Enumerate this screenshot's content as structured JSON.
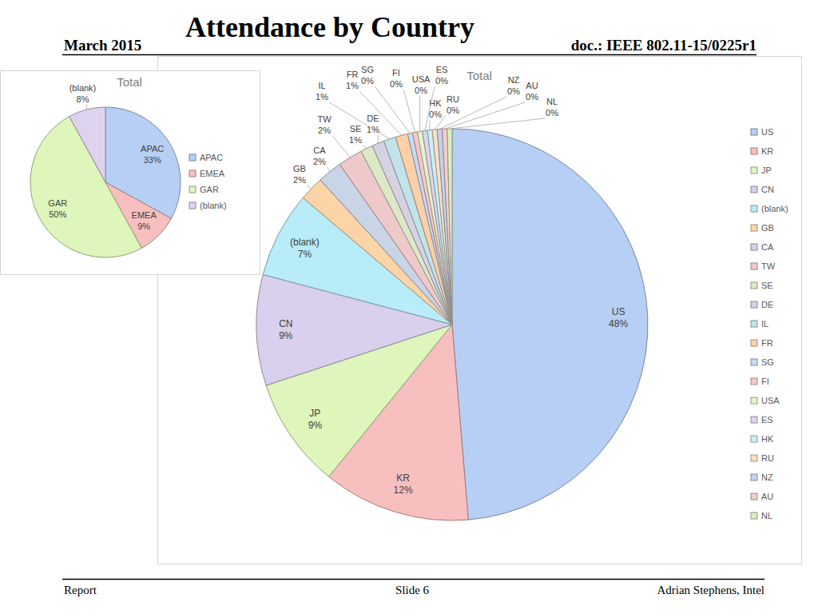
{
  "slide": {
    "date": "March 2015",
    "title": "Attendance by Country",
    "doc": "doc.: IEEE 802.11-15/0225r1",
    "footer_left": "Report",
    "slide_number": "Slide 6",
    "author": "Adrian Stephens, Intel"
  },
  "chart_data": [
    {
      "type": "pie",
      "title": "Total",
      "categories": [
        "APAC",
        "EMEA",
        "GAR",
        "(blank)"
      ],
      "values": [
        33,
        9,
        50,
        8
      ],
      "value_labels": [
        "33%",
        "9%",
        "50%",
        "8%"
      ],
      "colors": [
        "#b7cff4",
        "#f8bfbf",
        "#def5bb",
        "#ddd3ef"
      ],
      "data_labels": true,
      "legend": "right"
    },
    {
      "type": "pie",
      "title": "Total",
      "categories": [
        "US",
        "KR",
        "JP",
        "CN",
        "(blank)",
        "GB",
        "CA",
        "TW",
        "SE",
        "DE",
        "IL",
        "FR",
        "SG",
        "FI",
        "USA",
        "ES",
        "HK",
        "RU",
        "NZ",
        "AU",
        "NL"
      ],
      "values": [
        48,
        12,
        9,
        9,
        7,
        2,
        2,
        2,
        1,
        1,
        1,
        1,
        0.4,
        0.4,
        0.4,
        0.4,
        0.4,
        0.4,
        0.4,
        0.4,
        0.4
      ],
      "value_labels": [
        "48%",
        "12%",
        "9%",
        "9%",
        "7%",
        "2%",
        "2%",
        "2%",
        "1%",
        "1%",
        "1%",
        "1%",
        "0%",
        "0%",
        "0%",
        "0%",
        "0%",
        "0%",
        "0%",
        "0%",
        "0%"
      ],
      "colors": [
        "#b7cff4",
        "#f8bfbf",
        "#def5bb",
        "#d9d0ee",
        "#b8ecf8",
        "#fbd4a8",
        "#c9d4e6",
        "#efc9c9",
        "#dde8c7",
        "#d7d2e2",
        "#c3e3ea",
        "#fcd0a8",
        "#c7dbf3",
        "#f8c7c7",
        "#e6f4c9",
        "#ddd5ee",
        "#c9eff8",
        "#fde0c2",
        "#c5d3ea",
        "#f3cdcd",
        "#dbeec0"
      ],
      "data_labels": true,
      "legend": "right"
    }
  ]
}
